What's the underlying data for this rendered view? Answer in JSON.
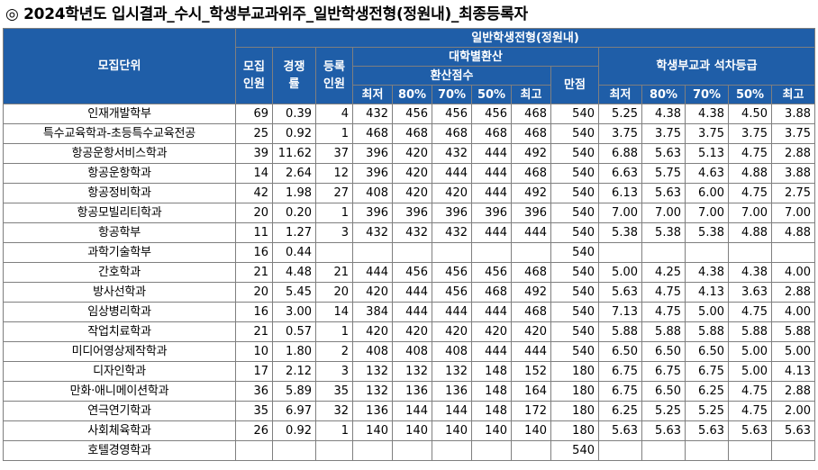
{
  "title": "◎ 2024학년도 입시결과_수시_학생부교과위주_일반학생전형(정원내)_최종등록자",
  "headers": {
    "unit": "모집단위",
    "quota": "모집인원",
    "competition": "경쟁률",
    "enrolled": "등록인원",
    "track": "일반학생전형(정원내)",
    "converted_group": "대학별환산",
    "converted_score": "환산점수",
    "full_score": "만점",
    "grade_group": "학생부교과 석차등급",
    "cols": [
      "최저",
      "80%",
      "70%",
      "50%",
      "최고"
    ]
  },
  "rows": [
    {
      "name": "인재개발학부",
      "quota": "69",
      "rate": "0.39",
      "enrolled": "4",
      "s1": "432",
      "s2": "456",
      "s3": "456",
      "s4": "456",
      "s5": "468",
      "full": "540",
      "g1": "5.25",
      "g2": "4.38",
      "g3": "4.38",
      "g4": "4.50",
      "g5": "3.88"
    },
    {
      "name": "특수교육학과-초등특수교육전공",
      "quota": "25",
      "rate": "0.92",
      "enrolled": "1",
      "s1": "468",
      "s2": "468",
      "s3": "468",
      "s4": "468",
      "s5": "468",
      "full": "540",
      "g1": "3.75",
      "g2": "3.75",
      "g3": "3.75",
      "g4": "3.75",
      "g5": "3.75"
    },
    {
      "name": "항공운항서비스학과",
      "quota": "39",
      "rate": "11.62",
      "enrolled": "37",
      "s1": "396",
      "s2": "420",
      "s3": "432",
      "s4": "444",
      "s5": "492",
      "full": "540",
      "g1": "6.88",
      "g2": "5.63",
      "g3": "5.13",
      "g4": "4.75",
      "g5": "2.88"
    },
    {
      "name": "항공운항학과",
      "quota": "14",
      "rate": "2.64",
      "enrolled": "12",
      "s1": "396",
      "s2": "420",
      "s3": "444",
      "s4": "444",
      "s5": "468",
      "full": "540",
      "g1": "6.63",
      "g2": "5.75",
      "g3": "4.63",
      "g4": "4.88",
      "g5": "3.88"
    },
    {
      "name": "항공정비학과",
      "quota": "42",
      "rate": "1.98",
      "enrolled": "27",
      "s1": "408",
      "s2": "420",
      "s3": "420",
      "s4": "444",
      "s5": "492",
      "full": "540",
      "g1": "6.13",
      "g2": "5.63",
      "g3": "6.00",
      "g4": "4.75",
      "g5": "2.75"
    },
    {
      "name": "항공모빌리티학과",
      "quota": "20",
      "rate": "0.20",
      "enrolled": "1",
      "s1": "396",
      "s2": "396",
      "s3": "396",
      "s4": "396",
      "s5": "396",
      "full": "540",
      "g1": "7.00",
      "g2": "7.00",
      "g3": "7.00",
      "g4": "7.00",
      "g5": "7.00"
    },
    {
      "name": "항공학부",
      "quota": "11",
      "rate": "1.27",
      "enrolled": "3",
      "s1": "432",
      "s2": "432",
      "s3": "432",
      "s4": "444",
      "s5": "444",
      "full": "540",
      "g1": "5.38",
      "g2": "5.38",
      "g3": "5.38",
      "g4": "4.88",
      "g5": "4.88"
    },
    {
      "name": "과학기술학부",
      "quota": "16",
      "rate": "0.44",
      "enrolled": "",
      "s1": "",
      "s2": "",
      "s3": "",
      "s4": "",
      "s5": "",
      "full": "540",
      "g1": "",
      "g2": "",
      "g3": "",
      "g4": "",
      "g5": ""
    },
    {
      "name": "간호학과",
      "quota": "21",
      "rate": "4.48",
      "enrolled": "21",
      "s1": "444",
      "s2": "456",
      "s3": "456",
      "s4": "456",
      "s5": "468",
      "full": "540",
      "g1": "5.00",
      "g2": "4.25",
      "g3": "4.38",
      "g4": "4.38",
      "g5": "4.00"
    },
    {
      "name": "방사선학과",
      "quota": "20",
      "rate": "5.45",
      "enrolled": "20",
      "s1": "420",
      "s2": "444",
      "s3": "456",
      "s4": "468",
      "s5": "492",
      "full": "540",
      "g1": "5.63",
      "g2": "4.75",
      "g3": "4.13",
      "g4": "3.63",
      "g5": "2.88"
    },
    {
      "name": "임상병리학과",
      "quota": "16",
      "rate": "3.00",
      "enrolled": "14",
      "s1": "384",
      "s2": "444",
      "s3": "444",
      "s4": "444",
      "s5": "468",
      "full": "540",
      "g1": "7.13",
      "g2": "4.75",
      "g3": "5.00",
      "g4": "4.75",
      "g5": "4.00"
    },
    {
      "name": "작업치료학과",
      "quota": "21",
      "rate": "0.57",
      "enrolled": "1",
      "s1": "420",
      "s2": "420",
      "s3": "420",
      "s4": "420",
      "s5": "420",
      "full": "540",
      "g1": "5.88",
      "g2": "5.88",
      "g3": "5.88",
      "g4": "5.88",
      "g5": "5.88"
    },
    {
      "name": "미디어영상제작학과",
      "quota": "10",
      "rate": "1.80",
      "enrolled": "2",
      "s1": "408",
      "s2": "408",
      "s3": "408",
      "s4": "444",
      "s5": "444",
      "full": "540",
      "g1": "6.50",
      "g2": "6.50",
      "g3": "6.50",
      "g4": "5.00",
      "g5": "5.00"
    },
    {
      "name": "디자인학과",
      "quota": "17",
      "rate": "2.12",
      "enrolled": "3",
      "s1": "132",
      "s2": "132",
      "s3": "132",
      "s4": "148",
      "s5": "152",
      "full": "180",
      "g1": "6.75",
      "g2": "6.75",
      "g3": "6.75",
      "g4": "5.00",
      "g5": "4.13"
    },
    {
      "name": "만화·애니메이션학과",
      "quota": "36",
      "rate": "5.89",
      "enrolled": "35",
      "s1": "132",
      "s2": "136",
      "s3": "136",
      "s4": "148",
      "s5": "164",
      "full": "180",
      "g1": "6.75",
      "g2": "6.50",
      "g3": "6.25",
      "g4": "4.75",
      "g5": "2.88"
    },
    {
      "name": "연극연기학과",
      "quota": "35",
      "rate": "6.97",
      "enrolled": "32",
      "s1": "136",
      "s2": "144",
      "s3": "144",
      "s4": "148",
      "s5": "172",
      "full": "180",
      "g1": "6.25",
      "g2": "5.25",
      "g3": "5.25",
      "g4": "4.75",
      "g5": "2.00"
    },
    {
      "name": "사회체육학과",
      "quota": "26",
      "rate": "0.92",
      "enrolled": "1",
      "s1": "140",
      "s2": "140",
      "s3": "140",
      "s4": "140",
      "s5": "140",
      "full": "180",
      "g1": "5.63",
      "g2": "5.63",
      "g3": "5.63",
      "g4": "5.63",
      "g5": "5.63"
    },
    {
      "name": "호텔경영학과",
      "quota": "",
      "rate": "",
      "enrolled": "",
      "s1": "",
      "s2": "",
      "s3": "",
      "s4": "",
      "s5": "",
      "full": "540",
      "g1": "",
      "g2": "",
      "g3": "",
      "g4": "",
      "g5": ""
    }
  ]
}
